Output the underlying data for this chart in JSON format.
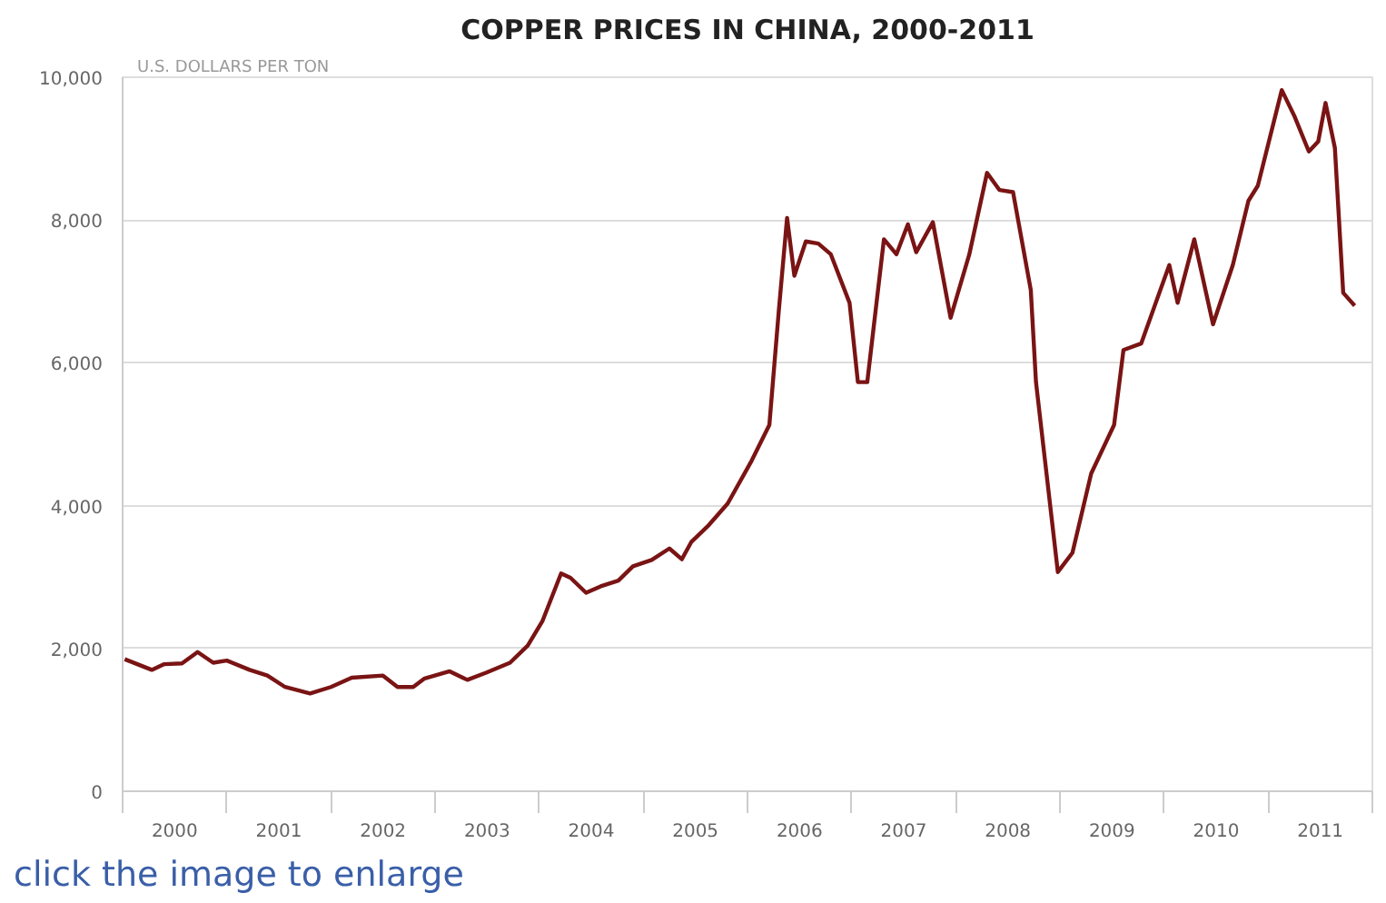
{
  "chart_data": {
    "type": "line",
    "title": "COPPER PRICES IN CHINA, 2000-2011",
    "ylabel": "U.S. DOLLARS PER TON",
    "annotations": [
      "click the image to enlarge"
    ],
    "x": [
      2000.02,
      2000.28,
      2000.4,
      2000.57,
      2000.72,
      2000.87,
      2001.0,
      2001.22,
      2001.39,
      2001.56,
      2001.8,
      2002.0,
      2002.2,
      2002.5,
      2002.64,
      2002.79,
      2002.9,
      2003.14,
      2003.31,
      2003.49,
      2003.72,
      2003.89,
      2004.03,
      2004.21,
      2004.3,
      2004.45,
      2004.59,
      2004.76,
      2004.9,
      2005.08,
      2005.25,
      2005.37,
      2005.46,
      2005.63,
      2005.81,
      2006.04,
      2006.21,
      2006.3,
      2006.38,
      2006.45,
      2006.56,
      2006.68,
      2006.8,
      2006.98,
      2007.06,
      2007.15,
      2007.31,
      2007.43,
      2007.54,
      2007.62,
      2007.78,
      2007.95,
      2008.13,
      2008.3,
      2008.42,
      2008.55,
      2008.72,
      2008.77,
      2008.98,
      2009.12,
      2009.3,
      2009.52,
      2009.61,
      2009.78,
      2010.05,
      2010.13,
      2010.29,
      2010.47,
      2010.66,
      2010.81,
      2010.9,
      2011.13,
      2011.25,
      2011.39,
      2011.48,
      2011.55,
      2011.64,
      2011.72,
      2011.83
    ],
    "series": [
      {
        "color": "#7a1414",
        "values": [
          1850,
          1700,
          1780,
          1790,
          1950,
          1800,
          1830,
          1700,
          1620,
          1460,
          1370,
          1460,
          1590,
          1620,
          1460,
          1460,
          1580,
          1680,
          1560,
          1660,
          1800,
          2040,
          2380,
          3050,
          2990,
          2780,
          2870,
          2950,
          3150,
          3240,
          3400,
          3250,
          3490,
          3730,
          4030,
          4630,
          5130,
          6720,
          8030,
          7220,
          7700,
          7670,
          7520,
          6840,
          5730,
          5730,
          7730,
          7520,
          7940,
          7550,
          7970,
          6630,
          7520,
          8660,
          8420,
          8390,
          7020,
          5730,
          3070,
          3340,
          4450,
          5130,
          6180,
          6270,
          7370,
          6840,
          7730,
          6540,
          7370,
          8270,
          8480,
          9820,
          9460,
          8960,
          9100,
          9640,
          9010,
          6980,
          6800
        ]
      }
    ],
    "xlim": [
      2000,
      2012
    ],
    "xticks": [
      {
        "value": 2000.5,
        "label": "2000"
      },
      {
        "value": 2001.5,
        "label": "2001"
      },
      {
        "value": 2002.5,
        "label": "2002"
      },
      {
        "value": 2003.5,
        "label": "2003"
      },
      {
        "value": 2004.5,
        "label": "2004"
      },
      {
        "value": 2005.5,
        "label": "2005"
      },
      {
        "value": 2006.5,
        "label": "2006"
      },
      {
        "value": 2007.5,
        "label": "2007"
      },
      {
        "value": 2008.5,
        "label": "2008"
      },
      {
        "value": 2009.5,
        "label": "2009"
      },
      {
        "value": 2010.5,
        "label": "2010"
      },
      {
        "value": 2011.5,
        "label": "2011"
      }
    ],
    "ylim": [
      0,
      10000
    ],
    "yticks": [
      0,
      {
        "value": 2000,
        "label": "2,000"
      },
      {
        "value": 4000,
        "label": "4,000"
      },
      {
        "value": 6000,
        "label": "6,000"
      },
      {
        "value": 8000,
        "label": "8,000"
      },
      {
        "value": 10000,
        "label": "10,000"
      }
    ],
    "grid": "y",
    "line_style": "solid"
  }
}
